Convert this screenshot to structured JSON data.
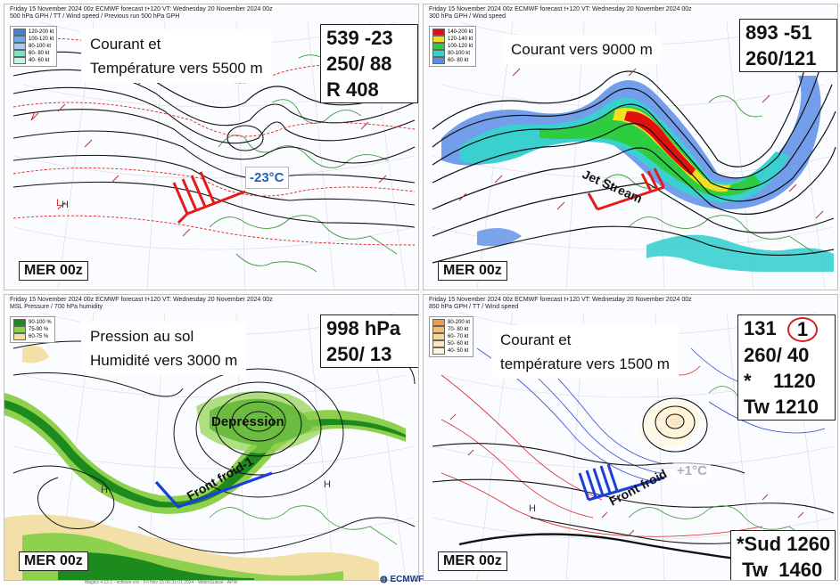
{
  "panels": {
    "p1": {
      "header1": "Friday  15 November  2024 00z ECMWF forecast t+120  VT: Wednesday 20 November  2024 00z",
      "header2": "500 hPa GPH / TT / Wind speed / Previous run 500 hPa GPH",
      "legend": [
        {
          "label": "120-200 kt",
          "color": "#4a7fd0"
        },
        {
          "label": "100-120 kt",
          "color": "#6fa8e6"
        },
        {
          "label": "80-100 kt",
          "color": "#a7cef2"
        },
        {
          "label": "60- 80 kt",
          "color": "#7fe0c8"
        },
        {
          "label": "40- 60 kt",
          "color": "#c6f2e4"
        }
      ],
      "title_line1": "Courant et",
      "title_line2": "Température vers 5500 m",
      "values": [
        "539 -23",
        "250/ 88",
        "R 408"
      ],
      "temp_label": "-23°C",
      "mer": "MER 00z",
      "lowmark": "L",
      "lowmark2": "H"
    },
    "p2": {
      "header1": "Friday  15 November  2024 00z ECMWF forecast t+120  VT: Wednesday 20 November  2024 00z",
      "header2": "300 hPa GPH / Wind speed",
      "legend": [
        {
          "label": "140-200 kt",
          "color": "#e01010"
        },
        {
          "label": "120-140 kt",
          "color": "#f0e020"
        },
        {
          "label": "100-120 kt",
          "color": "#2ecc40"
        },
        {
          "label": "80-100 kt",
          "color": "#3ad0d0"
        },
        {
          "label": "60- 80 kt",
          "color": "#5b8de8"
        }
      ],
      "title": "Courant vers 9000 m",
      "values": [
        "893 -51",
        "260/121"
      ],
      "annotation": "Jet Stream",
      "mer": "MER 00z"
    },
    "p3": {
      "header1": "Friday  15 November  2024 00z ECMWF forecast t+120  VT: Wednesday 20 November  2024 00z",
      "header2": "MSL Pressure / 700 hPa humidity",
      "legend": [
        {
          "label": "90-100 %",
          "color": "#1d8a1d"
        },
        {
          "label": "75-90 %",
          "color": "#8fd14f"
        },
        {
          "label": "60-75 %",
          "color": "#f3dfa8"
        }
      ],
      "title_line1": "Pression au sol",
      "title_line2": "Humidité vers 3000 m",
      "values": [
        "998 hPa",
        "250/ 13"
      ],
      "annotation1": "Depression",
      "annotation2": "Front froid-1",
      "mer": "MER 00z",
      "hmark": "H",
      "hmark2": "H"
    },
    "p4": {
      "header1": "Friday  15 November  2024 00z ECMWF forecast t+120  VT: Wednesday 20 November  2024 00z",
      "header2": "850 hPa GPH / TT / Wind speed",
      "legend": [
        {
          "label": "80-200 kt",
          "color": "#e8a050"
        },
        {
          "label": "70- 80 kt",
          "color": "#f0bf70"
        },
        {
          "label": "60- 70 kt",
          "color": "#f6d79a"
        },
        {
          "label": "50- 60 kt",
          "color": "#fbe8c0"
        },
        {
          "label": "40- 50 kt",
          "color": "#fff6e0"
        }
      ],
      "title_line1": "Courant et",
      "title_line2": "température vers 1500 m",
      "values_row1a": "131",
      "values_row1b": "1",
      "values": [
        "260/ 40",
        "*    1120",
        "Tw 1210"
      ],
      "bottom_values": [
        "*Sud 1260",
        " Tw  1460"
      ],
      "temp_label": "+1°C",
      "annotation": "Front froid",
      "mer": "MER 00z",
      "hmark": "H"
    }
  },
  "footer": "Magics 4.13.1 - ecflows-xxx - Fri Nov 15 06:31:01 2024 - MeteoSuisse - APW",
  "logo": "ECMWF"
}
